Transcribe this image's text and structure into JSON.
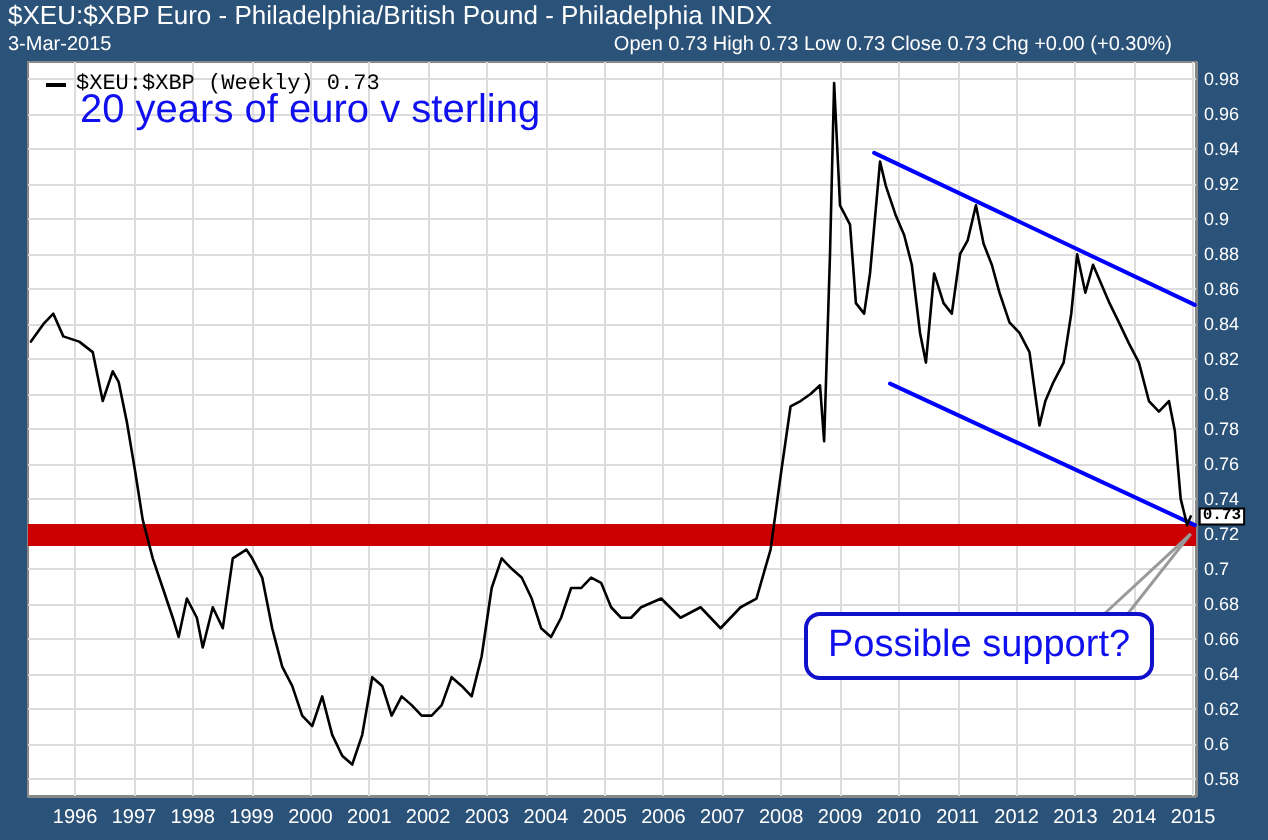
{
  "chart_data": {
    "type": "line",
    "title": "$XEU:$XBP Euro - Philadelphia/British Pound - Philadelphia INDX",
    "subtitle": "3-Mar-2015",
    "annotations": [
      "Open 0.73 High 0.73 Low 0.73 Close 0.73 Chg +0.00 (+0.30%)",
      "20 years of euro v sterling",
      {
        "text": "Possible support?",
        "x": 2014.96,
        "y": 0.72
      }
    ],
    "x": [
      1995.25,
      1995.46,
      1995.63,
      1995.8,
      1996.07,
      1996.3,
      1996.47,
      1996.64,
      1996.74,
      1996.88,
      1997.02,
      1997.15,
      1997.32,
      1997.49,
      1997.66,
      1997.76,
      1997.9,
      1998.07,
      1998.17,
      1998.34,
      1998.51,
      1998.68,
      1998.91,
      1999.01,
      1999.18,
      1999.35,
      1999.52,
      1999.69,
      1999.86,
      2000.03,
      2000.2,
      2000.37,
      2000.54,
      2000.71,
      2000.88,
      2001.05,
      2001.22,
      2001.38,
      2001.55,
      2001.72,
      2001.89,
      2002.06,
      2002.23,
      2002.4,
      2002.57,
      2002.74,
      2002.91,
      2003.08,
      2003.25,
      2003.42,
      2003.59,
      2003.76,
      2003.92,
      2004.09,
      2004.26,
      2004.43,
      2004.6,
      2004.77,
      2004.94,
      2005.11,
      2005.28,
      2005.45,
      2005.62,
      2005.96,
      2006.29,
      2006.63,
      2006.97,
      2007.31,
      2007.58,
      2007.82,
      2007.99,
      2008.16,
      2008.33,
      2008.5,
      2008.66,
      2008.73,
      2008.83,
      2008.9,
      2009.0,
      2009.17,
      2009.27,
      2009.41,
      2009.51,
      2009.68,
      2009.78,
      2009.95,
      2010.09,
      2010.22,
      2010.36,
      2010.46,
      2010.6,
      2010.76,
      2010.9,
      2011.04,
      2011.17,
      2011.31,
      2011.44,
      2011.58,
      2011.71,
      2011.88,
      2012.05,
      2012.22,
      2012.39,
      2012.49,
      2012.63,
      2012.8,
      2012.93,
      2013.03,
      2013.17,
      2013.3,
      2013.44,
      2013.58,
      2013.74,
      2013.91,
      2014.08,
      2014.25,
      2014.42,
      2014.59,
      2014.69,
      2014.79,
      2014.9,
      2014.96
    ],
    "series": [
      {
        "name": "$XEU:$XBP (Weekly) 0.73",
        "color": "#000000",
        "values": [
          0.83,
          0.84,
          0.846,
          0.833,
          0.83,
          0.824,
          0.796,
          0.813,
          0.807,
          0.784,
          0.756,
          0.728,
          0.706,
          0.689,
          0.672,
          0.661,
          0.683,
          0.672,
          0.655,
          0.678,
          0.666,
          0.706,
          0.711,
          0.706,
          0.695,
          0.666,
          0.644,
          0.633,
          0.616,
          0.61,
          0.627,
          0.605,
          0.593,
          0.588,
          0.605,
          0.638,
          0.633,
          0.616,
          0.627,
          0.622,
          0.616,
          0.616,
          0.622,
          0.638,
          0.633,
          0.627,
          0.65,
          0.689,
          0.706,
          0.7,
          0.695,
          0.683,
          0.666,
          0.661,
          0.672,
          0.689,
          0.689,
          0.695,
          0.692,
          0.678,
          0.672,
          0.672,
          0.678,
          0.683,
          0.672,
          0.678,
          0.666,
          0.678,
          0.683,
          0.711,
          0.753,
          0.793,
          0.796,
          0.8,
          0.805,
          0.773,
          0.88,
          0.978,
          0.908,
          0.897,
          0.852,
          0.846,
          0.869,
          0.933,
          0.919,
          0.902,
          0.891,
          0.874,
          0.835,
          0.818,
          0.869,
          0.852,
          0.846,
          0.88,
          0.888,
          0.908,
          0.886,
          0.874,
          0.858,
          0.841,
          0.835,
          0.824,
          0.782,
          0.796,
          0.807,
          0.818,
          0.846,
          0.88,
          0.858,
          0.874,
          0.863,
          0.852,
          0.841,
          0.829,
          0.818,
          0.796,
          0.79,
          0.796,
          0.779,
          0.74,
          0.725,
          0.73
        ],
        "value_labels": [
          null,
          null,
          null,
          null,
          null,
          null,
          null,
          null,
          null,
          null,
          null,
          null,
          null,
          null,
          null,
          null,
          null,
          null,
          null,
          null,
          null,
          null,
          null,
          null,
          null,
          null,
          null,
          null,
          null,
          null,
          null,
          null,
          null,
          null,
          null,
          null,
          null,
          null,
          null,
          null,
          null,
          null,
          null,
          null,
          null,
          null,
          null,
          null,
          null,
          null,
          null,
          null,
          null,
          null,
          null,
          null,
          null,
          null,
          null,
          null,
          null,
          null,
          null,
          null,
          null,
          null,
          null,
          null,
          null,
          null,
          null,
          null,
          null,
          null,
          null,
          null,
          null,
          null,
          null,
          null,
          null,
          null,
          null,
          null,
          null,
          null,
          null,
          null,
          null,
          null,
          null,
          null,
          null,
          null,
          null,
          null,
          null,
          null,
          null,
          null,
          null,
          null,
          null,
          null,
          null,
          null,
          null,
          null,
          null,
          null,
          null,
          null,
          null,
          null,
          null,
          null,
          null,
          null,
          null,
          null,
          null,
          "0.73"
        ]
      },
      {
        "type": "line",
        "color": "#0000ff",
        "x": [
          2009.58,
          2015.03
        ],
        "values": [
          0.938,
          0.851
        ]
      },
      {
        "type": "line",
        "color": "#0000ff",
        "x": [
          2009.85,
          2015.03
        ],
        "values": [
          0.806,
          0.725
        ]
      }
    ],
    "ref_lines": [
      {
        "axis": "y",
        "value": 0.72,
        "color": "#cc0000"
      }
    ],
    "xlim": [
      1995.2,
      2015.05
    ],
    "xticks": [
      1996,
      1997,
      1998,
      1999,
      2000,
      2001,
      2002,
      2003,
      2004,
      2005,
      2006,
      2007,
      2008,
      2009,
      2010,
      2011,
      2012,
      2013,
      2014,
      2015
    ],
    "ylim": [
      0.57,
      0.99
    ],
    "yticks": [
      0.58,
      0.6,
      0.62,
      0.64,
      0.66,
      0.68,
      0.7,
      0.72,
      0.74,
      0.76,
      0.78,
      0.8,
      0.82,
      0.84,
      0.86,
      0.88,
      0.9,
      0.92,
      0.94,
      0.96,
      0.98
    ],
    "grid": true,
    "legend": "top left",
    "marker": "none",
    "line_style": "solid"
  }
}
